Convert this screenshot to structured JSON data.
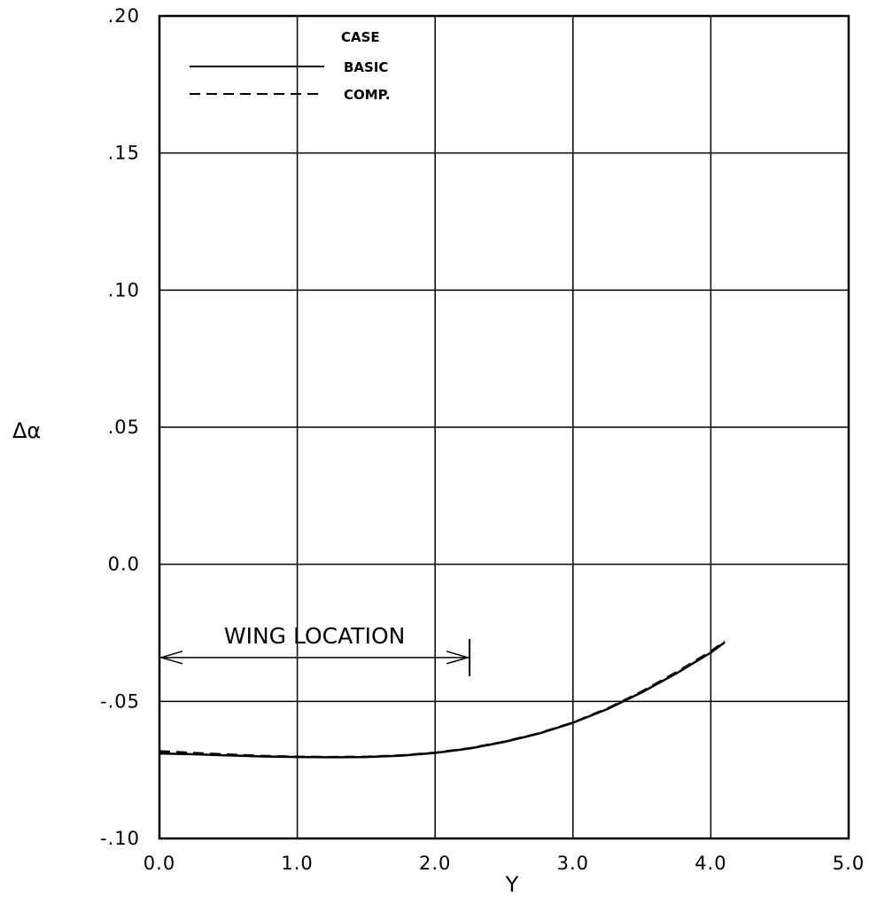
{
  "chart_data": {
    "type": "line",
    "title": "",
    "xlabel": "Y",
    "ylabel": "Δα",
    "xlim": [
      0.0,
      5.0
    ],
    "ylim": [
      -0.1,
      0.2
    ],
    "grid": true,
    "xticks": [
      0.0,
      1.0,
      2.0,
      3.0,
      4.0,
      5.0
    ],
    "xtick_labels": [
      "0.0",
      "1.0",
      "2.0",
      "3.0",
      "4.0",
      "5.0"
    ],
    "yticks": [
      0.2,
      0.15,
      0.1,
      0.05,
      0.0,
      -0.05,
      -0.1
    ],
    "ytick_labels": [
      ".20",
      ".15",
      ".10",
      ".05",
      "0.0",
      "-.05",
      "-.10"
    ],
    "legend": {
      "title": "CASE",
      "position": "top-left",
      "entries": [
        {
          "name": "BASIC",
          "style": "solid"
        },
        {
          "name": "COMP.",
          "style": "dashed"
        }
      ]
    },
    "series": [
      {
        "name": "BASIC",
        "style": "solid",
        "x": [
          0.0,
          0.25,
          0.5,
          0.75,
          1.0,
          1.25,
          1.5,
          1.75,
          2.0,
          2.25,
          2.5,
          2.75,
          3.0,
          3.25,
          3.5,
          3.75,
          4.0,
          4.1
        ],
        "y": [
          -0.069,
          -0.0693,
          -0.0697,
          -0.0701,
          -0.0703,
          -0.0704,
          -0.0703,
          -0.0698,
          -0.0688,
          -0.0672,
          -0.0648,
          -0.0618,
          -0.0578,
          -0.0528,
          -0.0467,
          -0.0398,
          -0.0322,
          -0.0285
        ]
      },
      {
        "name": "COMP.",
        "style": "dashed",
        "x": [
          0.0,
          0.25,
          0.5,
          0.75,
          1.0,
          1.25,
          1.5,
          1.75,
          2.0,
          2.25,
          2.5,
          2.75,
          3.0,
          3.25,
          3.5,
          3.75,
          4.0,
          4.1
        ],
        "y": [
          -0.0682,
          -0.0688,
          -0.0694,
          -0.0699,
          -0.0702,
          -0.0703,
          -0.0702,
          -0.0697,
          -0.0687,
          -0.0671,
          -0.0647,
          -0.0617,
          -0.0577,
          -0.0526,
          -0.0464,
          -0.0394,
          -0.0318,
          -0.0281
        ]
      }
    ],
    "annotations": [
      {
        "text": "WING LOCATION",
        "type": "double-arrow",
        "x_start": 0.0,
        "x_end": 2.25,
        "y": -0.034
      }
    ]
  }
}
